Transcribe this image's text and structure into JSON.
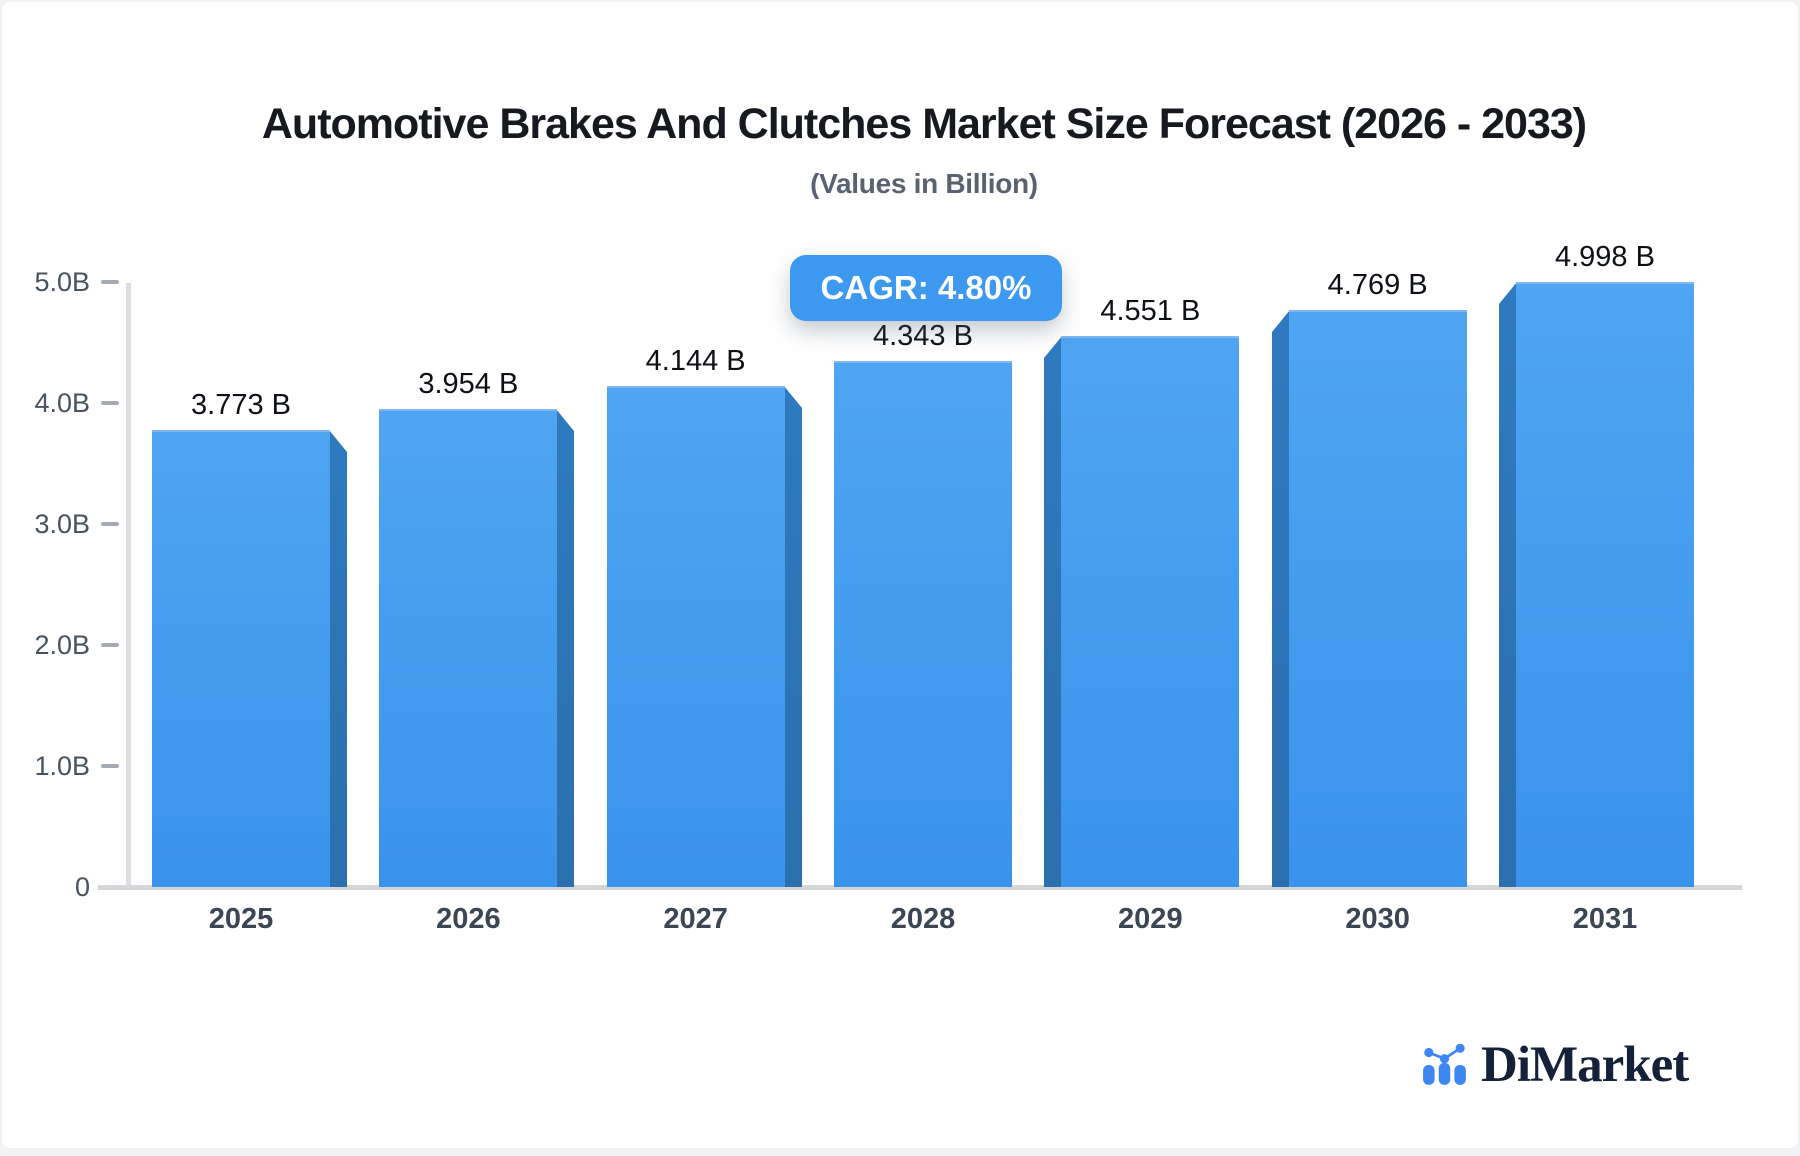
{
  "chart_data": {
    "type": "bar",
    "title": "Automotive Brakes And Clutches Market Size Forecast (2026 - 2033)",
    "subtitle": "(Values in Billion)",
    "cagr_label": "CAGR: 4.80%",
    "categories": [
      "2025",
      "2026",
      "2027",
      "2028",
      "2029",
      "2030",
      "2031"
    ],
    "values": [
      3.773,
      3.954,
      4.144,
      4.343,
      4.551,
      4.769,
      4.998
    ],
    "value_labels": [
      "3.773 B",
      "3.954 B",
      "4.144 B",
      "4.343 B",
      "4.551 B",
      "4.769 B",
      "4.998 B"
    ],
    "unit": "Billion",
    "y_ticks": [
      {
        "label": "5.0B",
        "value": 5
      },
      {
        "label": "4.0B",
        "value": 4
      },
      {
        "label": "3.0B",
        "value": 3
      },
      {
        "label": "2.0B",
        "value": 2
      },
      {
        "label": "1.0B",
        "value": 1
      },
      {
        "label": "0",
        "value": 0
      }
    ],
    "ylim": [
      0,
      5
    ],
    "grid": false,
    "legend": "none",
    "colors": {
      "bar_face_top": "#4fa5f2",
      "bar_face_bottom": "#3a93ec",
      "bar_side_top": "#2f7abf",
      "bar_side_bottom": "#2c6fae",
      "badge": "#3d99f0",
      "logo_blue": "#3f86f3",
      "logo_text": "#152138"
    }
  },
  "branding": {
    "name": "DiMarket",
    "icon": "bar-chart-logo-icon"
  }
}
